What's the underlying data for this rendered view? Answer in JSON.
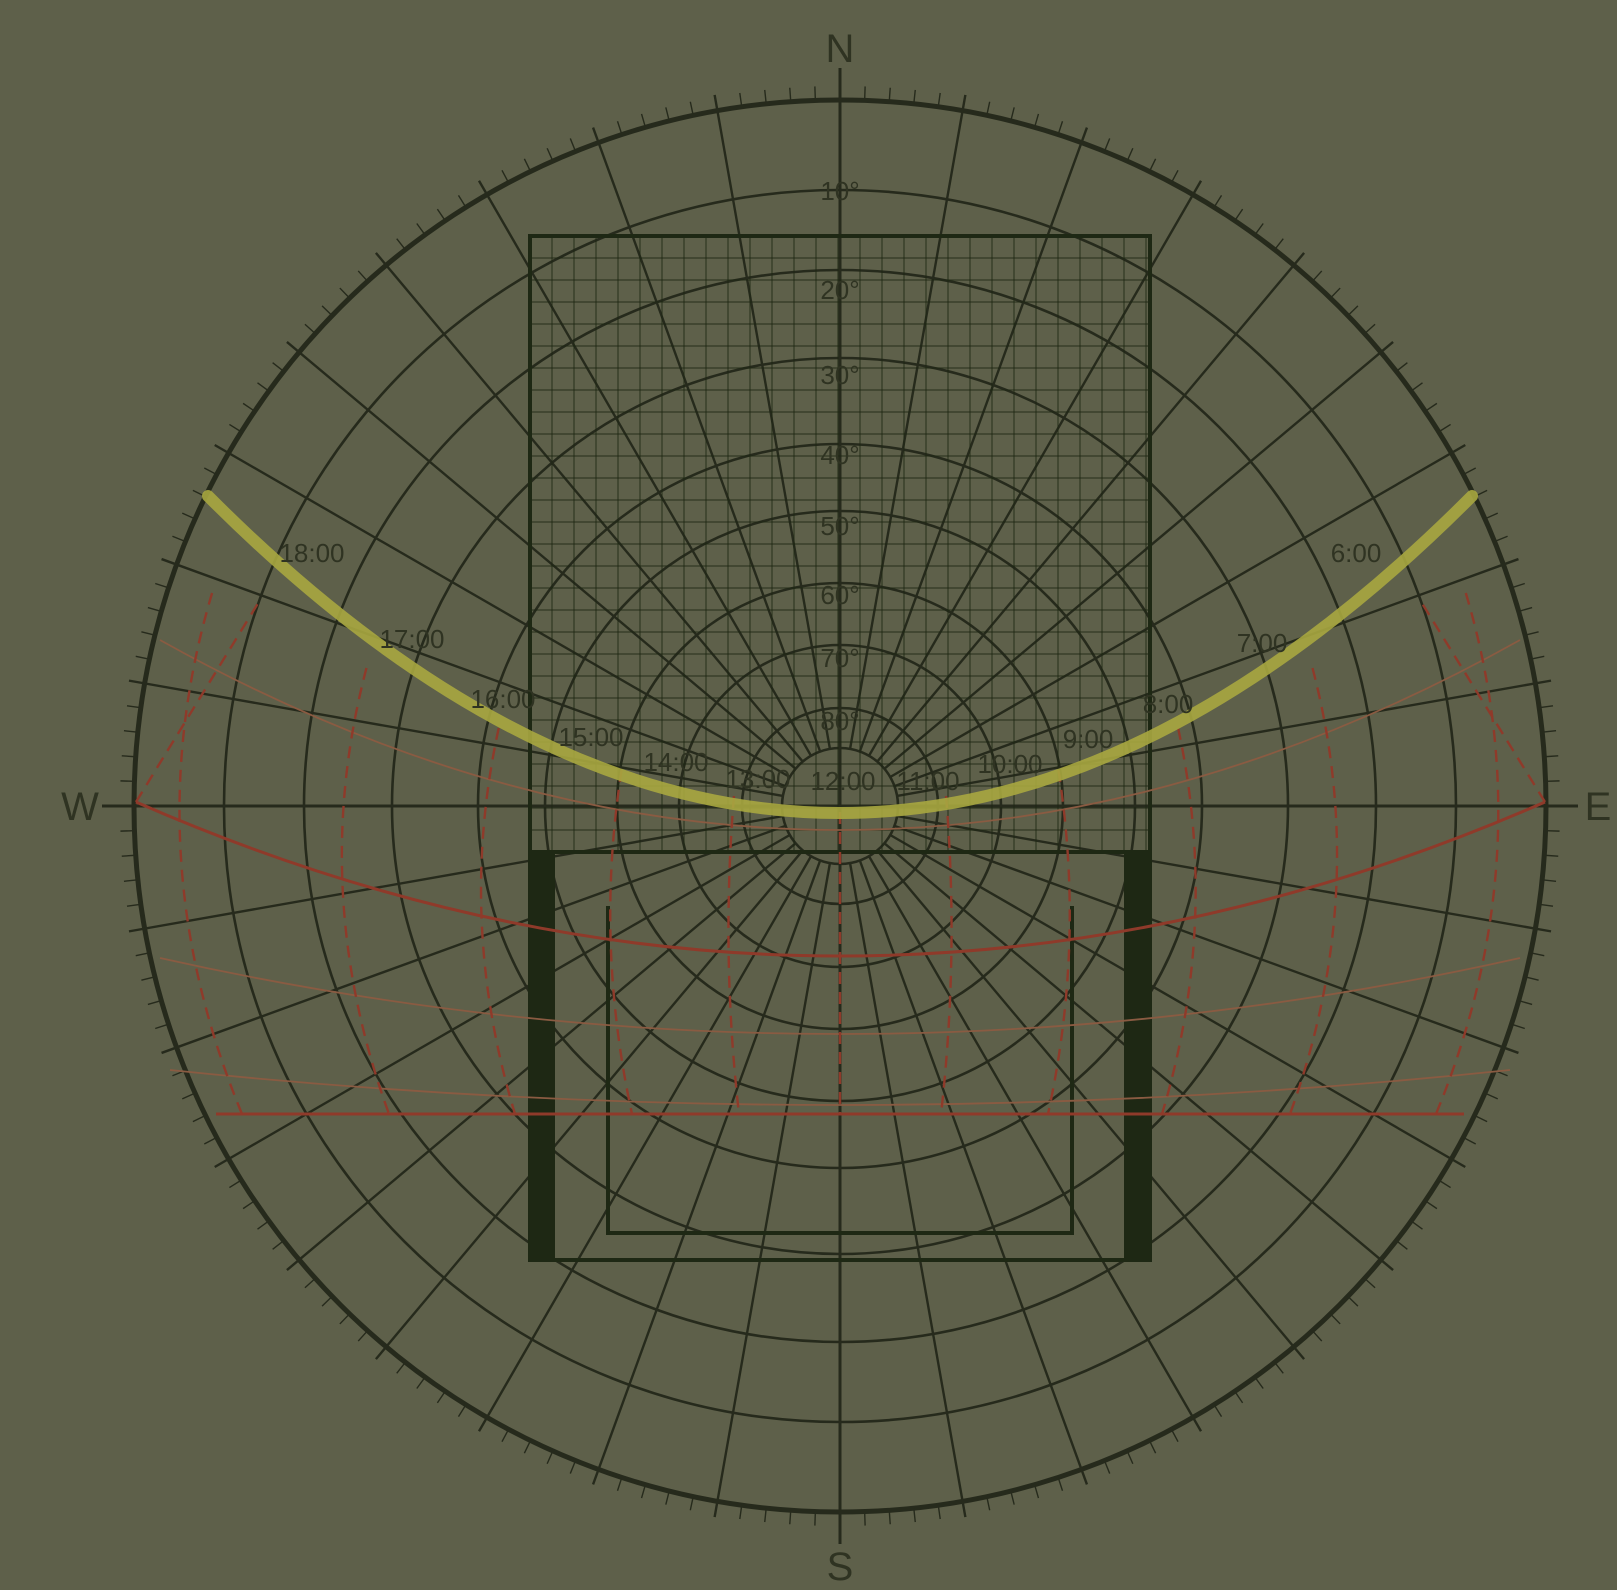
{
  "colors": {
    "background": "#5e604a",
    "grid": "#262a1c",
    "text": "#2f3322",
    "sun_path_highlight": "#a9a740",
    "sun_path_red": "#8f3a2a",
    "sun_path_thin": "#8a5b42",
    "shading_mask": "#1e2814"
  },
  "compass": {
    "north": "N",
    "south": "S",
    "east": "E",
    "west": "W"
  },
  "altitude_labels": [
    "10°",
    "20°",
    "30°",
    "40°",
    "50°",
    "60°",
    "70°",
    "80°"
  ],
  "hour_labels": [
    "18:00",
    "17:00",
    "16:00",
    "15:00",
    "14:00",
    "13:00",
    "12:00",
    "11:00",
    "10:00",
    "9:00",
    "8:00",
    "7:00",
    "6:00"
  ]
}
